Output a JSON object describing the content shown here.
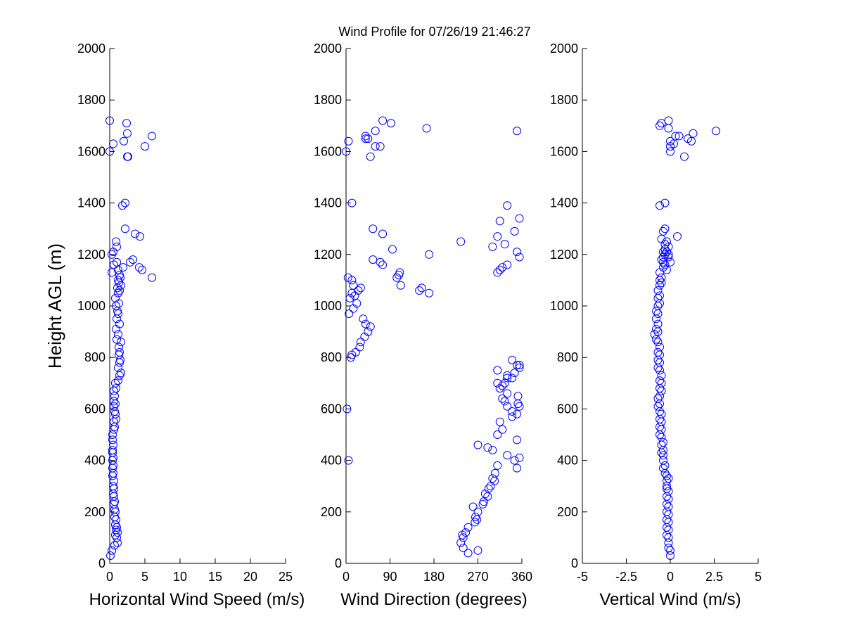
{
  "figure": {
    "title": "Wind Profile for  07/26/19 21:46:27",
    "marker_color": "#0000ff"
  },
  "chart_data": [
    {
      "type": "scatter",
      "title": "Wind Profile for  07/26/19 21:46:27",
      "xlabel": "Horizontal Wind Speed (m/s)",
      "ylabel": "Height AGL (m)",
      "xlim": [
        0,
        25
      ],
      "ylim": [
        0,
        2000
      ],
      "xticks": [
        "0",
        "5",
        "10",
        "15",
        "20",
        "25"
      ],
      "yticks": [
        "0",
        "200",
        "400",
        "600",
        "800",
        "1000",
        "1200",
        "1400",
        "1600",
        "1800",
        "2000"
      ],
      "grid": false,
      "series": [
        {
          "marker": "open-circle",
          "x": [
            0.1,
            0.3,
            0.7,
            1.1,
            1.0,
            0.8,
            1.1,
            0.9,
            1.0,
            0.8,
            0.9,
            0.7,
            0.8,
            0.7,
            0.6,
            0.7,
            0.6,
            0.5,
            0.6,
            0.5,
            0.6,
            0.4,
            0.5,
            0.4,
            0.5,
            0.4,
            0.5,
            0.4,
            0.4,
            0.5,
            0.4,
            0.4,
            0.6,
            0.7,
            0.6,
            0.9,
            0.8,
            0.7,
            0.6,
            0.8,
            0.6,
            0.7,
            0.6,
            0.9,
            0.8,
            1.2,
            1.4,
            1.6,
            1.2,
            1.4,
            1.5,
            1.3,
            1.4,
            1.3,
            1.6,
            1.0,
            1.2,
            0.9,
            1.4,
            1.0,
            1.2,
            1.1,
            0.9,
            1.3,
            0.8,
            1.2,
            1.4,
            1.1,
            1.6,
            1.3,
            1.2,
            1.5,
            1.4,
            1.2,
            0.3,
            1.9,
            0.6,
            1.0,
            4.6,
            4.2,
            6.0,
            2.9,
            3.3,
            4.3,
            0.3,
            1.0,
            3.6,
            0.5,
            0.9,
            2.2,
            2.2,
            1.8,
            2.6,
            5.0,
            2.0,
            6.0,
            0.5,
            0.0,
            2.5,
            2.4,
            2.5,
            0.0
          ],
          "y": [
            30,
            50,
            70,
            80,
            100,
            110,
            120,
            130,
            140,
            150,
            170,
            180,
            200,
            210,
            230,
            240,
            260,
            270,
            290,
            300,
            320,
            340,
            350,
            370,
            380,
            400,
            410,
            430,
            440,
            460,
            480,
            500,
            520,
            530,
            550,
            560,
            580,
            590,
            610,
            620,
            630,
            650,
            670,
            680,
            700,
            710,
            730,
            740,
            760,
            780,
            790,
            810,
            820,
            840,
            860,
            870,
            890,
            910,
            930,
            950,
            970,
            980,
            1000,
            1010,
            1030,
            1050,
            1060,
            1070,
            1080,
            1090,
            1100,
            1110,
            1120,
            1140,
            1130,
            1150,
            1160,
            1170,
            1140,
            1150,
            1110,
            1170,
            1180,
            1270,
            1200,
            1230,
            1280,
            1210,
            1250,
            1300,
            1400,
            1390,
            1580,
            1620,
            1640,
            1660,
            1630,
            1600,
            1670,
            1710,
            1580,
            1720
          ]
        }
      ]
    },
    {
      "type": "scatter",
      "xlabel": "Wind Direction (degrees)",
      "ylabel": "",
      "xlim": [
        0,
        360
      ],
      "ylim": [
        0,
        2000
      ],
      "xticks": [
        "0",
        "90",
        "180",
        "270",
        "360"
      ],
      "yticks": [
        "0",
        "200",
        "400",
        "600",
        "800",
        "1000",
        "1200",
        "1400",
        "1600",
        "1800",
        "2000"
      ],
      "grid": false,
      "series": [
        {
          "marker": "open-circle",
          "x": [
            250,
            240,
            270,
            235,
            240,
            238,
            245,
            250,
            264,
            268,
            265,
            270,
            260,
            280,
            282,
            290,
            285,
            292,
            296,
            304,
            300,
            305,
            310,
            300,
            290,
            270,
            350,
            330,
            355,
            350,
            310,
            320,
            315,
            340,
            350,
            340,
            330,
            325,
            320,
            330,
            315,
            320,
            310,
            340,
            330,
            310,
            355,
            350,
            340,
            355,
            345,
            330,
            325,
            352,
            355,
            352,
            345,
            2,
            5,
            10,
            12,
            20,
            28,
            30,
            38,
            45,
            50,
            40,
            35,
            6,
            15,
            22,
            8,
            12,
            18,
            25,
            30,
            15,
            12,
            4,
            55,
            70,
            75,
            110,
            108,
            104,
            112,
            150,
            155,
            170,
            170,
            235,
            300,
            310,
            325,
            345,
            355,
            350,
            330,
            320,
            315,
            310,
            0,
            5,
            40,
            60,
            45,
            75,
            92,
            60,
            50,
            40,
            70,
            55,
            75,
            95,
            12,
            330,
            165,
            350,
            315,
            355
          ],
          "y": [
            40,
            60,
            50,
            80,
            100,
            110,
            120,
            140,
            160,
            170,
            180,
            200,
            220,
            230,
            240,
            260,
            270,
            290,
            300,
            320,
            330,
            350,
            380,
            440,
            450,
            460,
            370,
            420,
            410,
            480,
            500,
            520,
            550,
            570,
            580,
            590,
            610,
            630,
            640,
            660,
            680,
            690,
            700,
            720,
            730,
            750,
            760,
            770,
            790,
            770,
            740,
            720,
            700,
            650,
            610,
            620,
            400,
            600,
            400,
            800,
            810,
            820,
            840,
            860,
            880,
            900,
            920,
            930,
            950,
            970,
            990,
            1010,
            1030,
            1050,
            1040,
            1060,
            1070,
            1080,
            1100,
            1110,
            1180,
            1170,
            1160,
            1130,
            1120,
            1110,
            1080,
            1060,
            1070,
            1050,
            1200,
            1250,
            1230,
            1270,
            1240,
            1290,
            1190,
            1210,
            1160,
            1150,
            1140,
            1130,
            1600,
            1640,
            1650,
            1680,
            1650,
            1720,
            1710,
            1620,
            1580,
            1660,
            1620,
            1300,
            1280,
            1220,
            1400,
            1390,
            1690,
            1680,
            1330,
            1340
          ]
        }
      ]
    },
    {
      "type": "scatter",
      "xlabel": "Vertical Wind (m/s)",
      "ylabel": "",
      "xlim": [
        -5,
        5
      ],
      "ylim": [
        0,
        2000
      ],
      "xticks": [
        "-5",
        "-2.5",
        "0",
        "2.5",
        "5"
      ],
      "yticks": [
        "0",
        "200",
        "400",
        "600",
        "800",
        "1000",
        "1200",
        "1400",
        "1600",
        "1800",
        "2000"
      ],
      "grid": false,
      "series": [
        {
          "marker": "open-circle",
          "x": [
            0.0,
            0.0,
            -0.1,
            -0.1,
            -0.1,
            -0.2,
            -0.1,
            -0.2,
            -0.1,
            -0.2,
            -0.1,
            -0.2,
            -0.1,
            -0.2,
            -0.1,
            -0.2,
            -0.1,
            -0.2,
            -0.2,
            -0.2,
            -0.1,
            -0.2,
            -0.3,
            -0.4,
            -0.3,
            -0.4,
            -0.4,
            -0.5,
            -0.4,
            -0.5,
            -0.4,
            -0.5,
            -0.6,
            -0.5,
            -0.6,
            -0.5,
            -0.6,
            -0.5,
            -0.6,
            -0.7,
            -0.6,
            -0.7,
            -0.6,
            -0.5,
            -0.6,
            -0.5,
            -0.6,
            -0.5,
            -0.6,
            -0.7,
            -0.6,
            -0.7,
            -0.6,
            -0.7,
            -0.6,
            -0.7,
            -0.8,
            -0.9,
            -0.7,
            -0.8,
            -0.7,
            -0.8,
            -0.7,
            -0.8,
            -0.7,
            -0.6,
            -0.7,
            -0.6,
            -0.7,
            -0.6,
            -0.5,
            -0.6,
            -0.5,
            -0.6,
            -0.3,
            -0.4,
            -0.5,
            -0.4,
            -0.3,
            -0.4,
            -0.3,
            -0.2,
            -0.1,
            -0.2,
            -0.1,
            -0.1,
            0.0,
            0.4,
            -0.3,
            -0.4,
            -0.5,
            -0.3,
            -0.4,
            -0.2,
            -0.6,
            -0.3,
            -0.5,
            -0.1,
            0.8,
            0.0,
            0.0,
            0.2,
            0.5,
            1.0,
            1.2,
            1.3,
            2.6,
            -0.1,
            -0.6,
            0.0,
            0.3
          ],
          "y": [
            30,
            50,
            60,
            80,
            100,
            110,
            130,
            140,
            160,
            170,
            190,
            200,
            220,
            230,
            250,
            260,
            280,
            290,
            300,
            320,
            330,
            340,
            350,
            370,
            380,
            400,
            420,
            430,
            440,
            460,
            470,
            490,
            500,
            520,
            530,
            550,
            560,
            580,
            590,
            610,
            620,
            640,
            650,
            670,
            680,
            700,
            710,
            730,
            750,
            760,
            780,
            790,
            810,
            820,
            840,
            860,
            870,
            890,
            900,
            910,
            930,
            950,
            970,
            980,
            1000,
            1010,
            1030,
            1040,
            1060,
            1080,
            1090,
            1100,
            1110,
            1130,
            1160,
            1170,
            1180,
            1210,
            1200,
            1190,
            1220,
            1250,
            1230,
            1210,
            1200,
            1190,
            1170,
            1270,
            1300,
            1290,
            1260,
            1240,
            1150,
            1140,
            1390,
            1400,
            1710,
            1720,
            1580,
            1600,
            1620,
            1630,
            1660,
            1650,
            1640,
            1670,
            1680,
            1690,
            1700,
            1640,
            1660
          ]
        }
      ]
    }
  ]
}
